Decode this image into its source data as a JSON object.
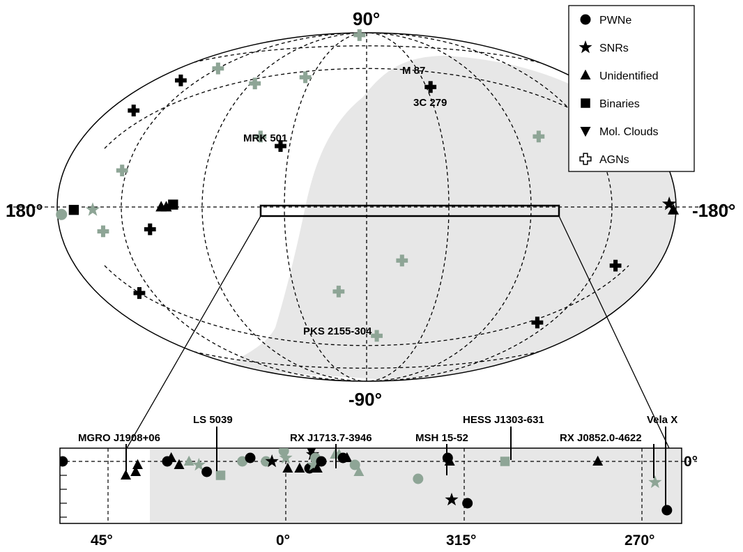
{
  "chart_data": {
    "type": "scatter",
    "projection": "hammer-aitoff-galactic",
    "axis_labels": {
      "top": "90°",
      "bottom": "-90°",
      "left": "180°",
      "right": "-180°"
    },
    "colors": {
      "galactic_source": "#000000",
      "extragalactic_source": "#8ea596",
      "visibility_shade": "#e7e7e7"
    },
    "legend": {
      "placement": "top-right",
      "entries": [
        {
          "label": "PWNe",
          "marker": "circle"
        },
        {
          "label": "SNRs",
          "marker": "star"
        },
        {
          "label": "Unidentified",
          "marker": "triangle-up"
        },
        {
          "label": "Binaries",
          "marker": "square"
        },
        {
          "label": "Mol. Clouds",
          "marker": "triangle-down"
        },
        {
          "label": "AGNs",
          "marker": "cross-outline"
        }
      ]
    },
    "source_labels": [
      "M 87",
      "3C 279",
      "MRK 501",
      "PKS 2155-304"
    ],
    "sky_points": [
      {
        "l": 84,
        "b": 88,
        "type": "AGN",
        "color": "grey"
      },
      {
        "l": 150,
        "b": 58,
        "type": "AGN",
        "color": "grey"
      },
      {
        "l": 98,
        "b": 56,
        "type": "AGN",
        "color": "grey"
      },
      {
        "l": 60,
        "b": 62,
        "type": "AGN",
        "color": "grey"
      },
      {
        "l": 160,
        "b": 50,
        "type": "AGN",
        "color": "black"
      },
      {
        "l": 162,
        "b": 36,
        "type": "AGN",
        "color": "black"
      },
      {
        "l": 305,
        "b": 57,
        "type": "AGN",
        "color": "black"
      },
      {
        "l": 50,
        "b": 28,
        "type": "AGN",
        "color": "black"
      },
      {
        "l": 64,
        "b": 32,
        "type": "AGN",
        "color": "grey"
      },
      {
        "l": 255,
        "b": 30,
        "type": "AGN",
        "color": "grey"
      },
      {
        "l": 140,
        "b": 14,
        "type": "AGN",
        "color": "grey"
      },
      {
        "l": 150,
        "b": -9,
        "type": "AGN",
        "color": "grey"
      },
      {
        "l": 120,
        "b": -9,
        "type": "AGN",
        "color": "black"
      },
      {
        "l": 340,
        "b": -25,
        "type": "AGN",
        "color": "grey"
      },
      {
        "l": 210,
        "b": -22,
        "type": "AGN",
        "color": "black"
      },
      {
        "l": 150,
        "b": -33,
        "type": "AGN",
        "color": "black"
      },
      {
        "l": 18,
        "b": -40,
        "type": "AGN",
        "color": "grey"
      },
      {
        "l": 225,
        "b": -48,
        "type": "AGN",
        "color": "black"
      },
      {
        "l": 350,
        "b": -63,
        "type": "AGN",
        "color": "grey"
      },
      {
        "l": 168,
        "b": -1,
        "type": "Binary",
        "color": "black"
      },
      {
        "l": 105,
        "b": 1,
        "type": "Binary",
        "color": "black"
      },
      {
        "l": 112,
        "b": 0,
        "type": "Unidentified",
        "color": "black"
      },
      {
        "l": 109,
        "b": 0,
        "type": "Unidentified",
        "color": "black"
      },
      {
        "l": 155,
        "b": -1,
        "type": "SNR",
        "color": "grey"
      },
      {
        "l": 185,
        "b": 1,
        "type": "SNR",
        "color": "black"
      },
      {
        "l": 182,
        "b": -1,
        "type": "Unidentified",
        "color": "black"
      },
      {
        "l": 177,
        "b": -2.5,
        "type": "PWN",
        "color": "grey"
      }
    ],
    "plane_strip": {
      "x_ticks": [
        "45°",
        "0°",
        "315°",
        "270°"
      ],
      "y_tick": "0°",
      "x_range_deg": [
        60,
        250
      ],
      "annotated_sources": [
        "MGRO J1908+06",
        "LS 5039",
        "RX J1713.7-3946",
        "MSH 15-52",
        "HESS J1303-631",
        "RX J0852.0-4622",
        "Vela X"
      ],
      "points": [
        {
          "l": 56.5,
          "b": 0.0,
          "type": "PWN",
          "color": "black"
        },
        {
          "l": 40.5,
          "b": -2.0,
          "type": "Unidentified",
          "color": "black"
        },
        {
          "l": 38.0,
          "b": -1.5,
          "type": "Unidentified",
          "color": "black"
        },
        {
          "l": 37.5,
          "b": -0.5,
          "type": "Unidentified",
          "color": "black"
        },
        {
          "l": 30.0,
          "b": 0.0,
          "type": "PWN",
          "color": "black"
        },
        {
          "l": 29.0,
          "b": 0.5,
          "type": "Unidentified",
          "color": "black"
        },
        {
          "l": 27.0,
          "b": -0.5,
          "type": "Unidentified",
          "color": "black"
        },
        {
          "l": 24.5,
          "b": 0.0,
          "type": "Unidentified",
          "color": "grey"
        },
        {
          "l": 22.0,
          "b": -0.5,
          "type": "SNR",
          "color": "grey"
        },
        {
          "l": 20.0,
          "b": -1.5,
          "type": "PWN",
          "color": "black"
        },
        {
          "l": 16.5,
          "b": -2.0,
          "type": "Binary",
          "color": "grey"
        },
        {
          "l": 11.0,
          "b": 0.0,
          "type": "PWN",
          "color": "grey"
        },
        {
          "l": 9.0,
          "b": 0.5,
          "type": "PWN",
          "color": "black"
        },
        {
          "l": 5.0,
          "b": 0.0,
          "type": "PWN",
          "color": "grey"
        },
        {
          "l": 3.5,
          "b": 0.0,
          "type": "SNR",
          "color": "black"
        },
        {
          "l": 0.5,
          "b": 1.5,
          "type": "PWN",
          "color": "grey"
        },
        {
          "l": 0.0,
          "b": 0.5,
          "type": "SNR",
          "color": "grey"
        },
        {
          "l": -0.5,
          "b": -1.0,
          "type": "Unidentified",
          "color": "black"
        },
        {
          "l": -3.5,
          "b": -1.0,
          "type": "Unidentified",
          "color": "black"
        },
        {
          "l": -6.5,
          "b": 1.5,
          "type": "Mol. Cloud",
          "color": "black"
        },
        {
          "l": -6.8,
          "b": 1.0,
          "type": "SNR",
          "color": "black"
        },
        {
          "l": -6.0,
          "b": -1.0,
          "type": "PWN",
          "color": "black"
        },
        {
          "l": -7.0,
          "b": -0.5,
          "type": "SNR",
          "color": "grey"
        },
        {
          "l": -7.5,
          "b": 0.5,
          "type": "PWN",
          "color": "grey"
        },
        {
          "l": -8.0,
          "b": -1.0,
          "type": "Unidentified",
          "color": "black"
        },
        {
          "l": -9.0,
          "b": 0.0,
          "type": "PWN",
          "color": "black"
        },
        {
          "l": -12.5,
          "b": 1.0,
          "type": "Unidentified",
          "color": "grey"
        },
        {
          "l": -13.5,
          "b": 1.0,
          "type": "Unidentified",
          "color": "grey"
        },
        {
          "l": -14.5,
          "b": 0.5,
          "type": "PWN",
          "color": "black"
        },
        {
          "l": -15.5,
          "b": 0.5,
          "type": "Unidentified",
          "color": "black"
        },
        {
          "l": -17.5,
          "b": -0.5,
          "type": "PWN",
          "color": "grey"
        },
        {
          "l": -18.5,
          "b": -1.5,
          "type": "Unidentified",
          "color": "grey"
        },
        {
          "l": -33.5,
          "b": -2.5,
          "type": "PWN",
          "color": "grey"
        },
        {
          "l": -41.0,
          "b": 0.5,
          "type": "PWN",
          "color": "black"
        },
        {
          "l": -41.5,
          "b": 0.0,
          "type": "Unidentified",
          "color": "black"
        },
        {
          "l": -42.0,
          "b": -5.5,
          "type": "SNR",
          "color": "black"
        },
        {
          "l": -46.0,
          "b": -6.0,
          "type": "PWN",
          "color": "black"
        },
        {
          "l": -55.5,
          "b": 0.0,
          "type": "Binary",
          "color": "grey"
        },
        {
          "l": -79.0,
          "b": 0.0,
          "type": "Unidentified",
          "color": "black"
        },
        {
          "l": -93.5,
          "b": -3.0,
          "type": "SNR",
          "color": "grey"
        },
        {
          "l": -96.5,
          "b": -7.0,
          "type": "PWN",
          "color": "black"
        }
      ]
    }
  }
}
